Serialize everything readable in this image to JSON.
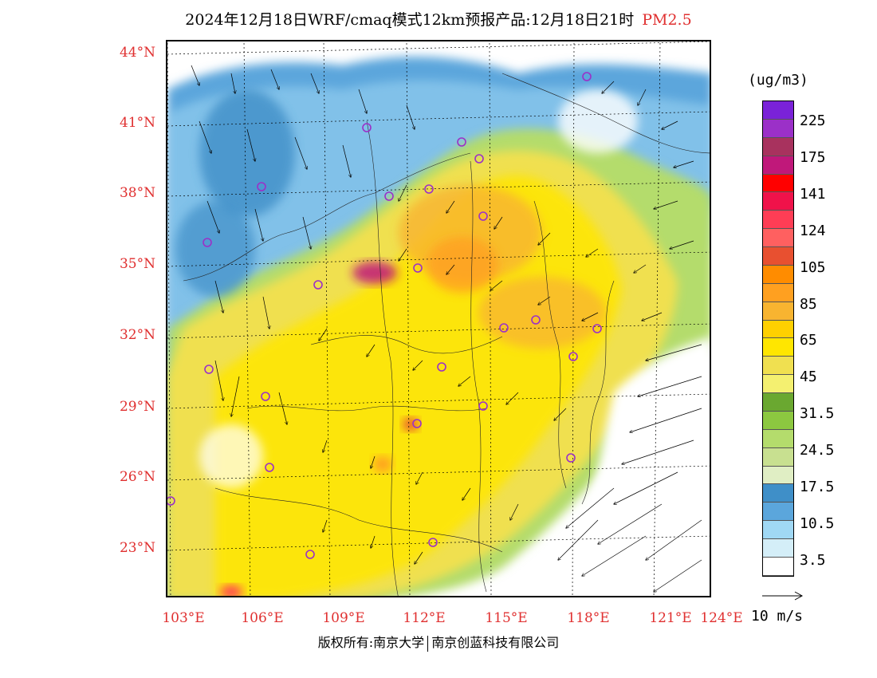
{
  "title": {
    "main": "2024年12月18日WRF/cmaq模式12km预报产品:12月18日21时",
    "variable": "PM2.5"
  },
  "lat_labels": [
    "44°N",
    "41°N",
    "38°N",
    "35°N",
    "32°N",
    "29°N",
    "26°N",
    "23°N"
  ],
  "lon_labels": [
    "103°E",
    "106°E",
    "109°E",
    "112°E",
    "115°E",
    "118°E",
    "121°E",
    "124°E"
  ],
  "colorbar": {
    "unit": "(ug/m3)",
    "labels": [
      "225",
      "175",
      "141",
      "124",
      "105",
      "85",
      "65",
      "45",
      "31.5",
      "24.5",
      "17.5",
      "10.5",
      "3.5"
    ],
    "colors": [
      "#7a22d8",
      "#9b30c8",
      "#a8325e",
      "#c0187a",
      "#ff0000",
      "#f0124a",
      "#ff3d55",
      "#ff6060",
      "#e85030",
      "#ff8c00",
      "#ffa020",
      "#f8b430",
      "#ffd000",
      "#ffe600",
      "#f0e050",
      "#f4f070",
      "#6aa830",
      "#8cc840",
      "#b4dc6c",
      "#c8e090",
      "#e0eec4",
      "#3f8fc8",
      "#5ba6dc",
      "#a0d8f4",
      "#d4eef8",
      "#ffffff"
    ]
  },
  "wind": {
    "label": "10 m/s"
  },
  "copyright": {
    "left": "版权所有:南京大学",
    "right": "南京创蓝科技有限公司"
  }
}
